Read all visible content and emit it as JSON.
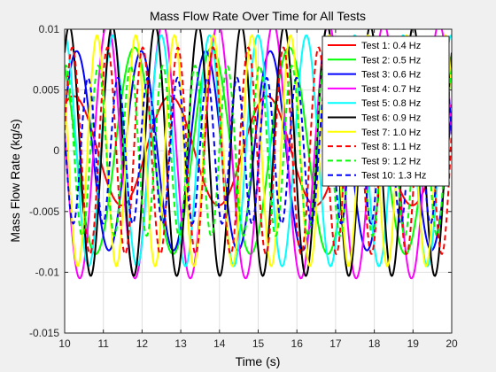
{
  "chart_data": {
    "type": "line",
    "title": "Mass Flow Rate Over Time for All Tests",
    "xlabel": "Time (s)",
    "ylabel": "Mass Flow Rate (kg/s)",
    "xlim": [
      10,
      20
    ],
    "ylim": [
      -0.015,
      0.01
    ],
    "xticks": [
      10,
      11,
      12,
      13,
      14,
      15,
      16,
      17,
      18,
      19,
      20
    ],
    "xtick_labels": [
      "10",
      "11",
      "12",
      "13",
      "14",
      "15",
      "16",
      "17",
      "18",
      "19",
      "20"
    ],
    "yticks": [
      -0.015,
      -0.01,
      -0.005,
      0,
      0.005,
      0.01
    ],
    "ytick_labels": [
      "-0.015",
      "-0.01",
      "-0.005",
      "0",
      "0.005",
      "0.01"
    ],
    "grid": true,
    "legend_location": "top-right",
    "series": [
      {
        "name": "Test 1: 0.4 Hz",
        "color": "#ff0000",
        "style": "solid",
        "freq_hz": 0.4,
        "amplitude": 0.0045,
        "phase": 1.0
      },
      {
        "name": "Test 2: 0.5 Hz",
        "color": "#00ff00",
        "style": "solid",
        "freq_hz": 0.5,
        "amplitude": 0.0085,
        "phase": 2.2
      },
      {
        "name": "Test 3: 0.6 Hz",
        "color": "#0000ff",
        "style": "solid",
        "freq_hz": 0.6,
        "amplitude": 0.0082,
        "phase": 0.4
      },
      {
        "name": "Test 4: 0.7 Hz",
        "color": "#ff00ff",
        "style": "solid",
        "freq_hz": 0.7,
        "amplitude": 0.0105,
        "phase": 3.0
      },
      {
        "name": "Test 5: 0.8 Hz",
        "color": "#00ffff",
        "style": "solid",
        "freq_hz": 0.8,
        "amplitude": 0.0095,
        "phase": 1.6
      },
      {
        "name": "Test 6: 0.9 Hz",
        "color": "#000000",
        "style": "solid",
        "freq_hz": 0.9,
        "amplitude": 0.0103,
        "phase": 0.9
      },
      {
        "name": "Test 7: 1.0 Hz",
        "color": "#ffff00",
        "style": "solid",
        "freq_hz": 1.0,
        "amplitude": 0.0095,
        "phase": 2.6
      },
      {
        "name": "Test 8: 1.1 Hz",
        "color": "#ff0000",
        "style": "dashed",
        "freq_hz": 1.1,
        "amplitude": 0.0085,
        "phase": 0.2
      },
      {
        "name": "Test 9: 1.2 Hz",
        "color": "#00ff00",
        "style": "dashed",
        "freq_hz": 1.2,
        "amplitude": 0.007,
        "phase": 1.3
      },
      {
        "name": "Test 10: 1.3 Hz",
        "color": "#0000ff",
        "style": "dashed",
        "freq_hz": 1.3,
        "amplitude": 0.006,
        "phase": 2.9
      }
    ]
  }
}
